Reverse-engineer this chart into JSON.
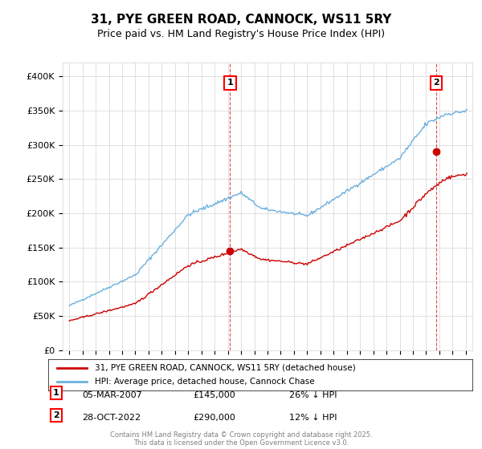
{
  "title_line1": "31, PYE GREEN ROAD, CANNOCK, WS11 5RY",
  "title_line2": "Price paid vs. HM Land Registry's House Price Index (HPI)",
  "legend_label1": "31, PYE GREEN ROAD, CANNOCK, WS11 5RY (detached house)",
  "legend_label2": "HPI: Average price, detached house, Cannock Chase",
  "annotation1_label": "1",
  "annotation1_date": "05-MAR-2007",
  "annotation1_price": 145000,
  "annotation1_text": "26% ↓ HPI",
  "annotation2_label": "2",
  "annotation2_date": "28-OCT-2022",
  "annotation2_price": 290000,
  "annotation2_text": "12% ↓ HPI",
  "footer": "Contains HM Land Registry data © Crown copyright and database right 2025.\nThis data is licensed under the Open Government Licence v3.0.",
  "hpi_color": "#6ab0de",
  "price_color": "#cc0000",
  "vline_color": "#cc0000",
  "background_color": "#ffffff",
  "ylim_min": 0,
  "ylim_max": 420000,
  "yticks": [
    0,
    50000,
    100000,
    150000,
    200000,
    250000,
    300000,
    350000,
    400000
  ],
  "ytick_labels": [
    "£0",
    "£50K",
    "£100K",
    "£150K",
    "£200K",
    "£250K",
    "£300K",
    "£350K",
    "£400K"
  ]
}
